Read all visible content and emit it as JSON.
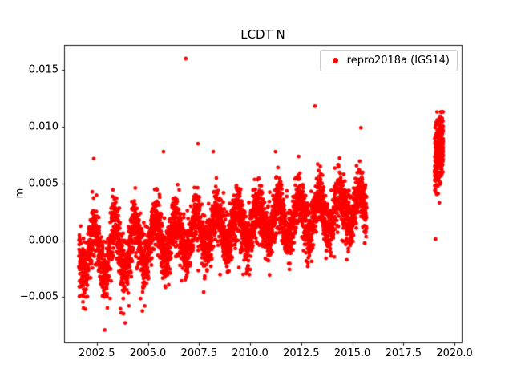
{
  "chart_data": {
    "type": "scatter",
    "title": "LCDT N",
    "xlabel": "",
    "ylabel": "m",
    "legend_label": "repro2018a (IGS14)",
    "legend_position": "upper right",
    "grid": false,
    "series_color": "#ff0000",
    "marker_radius_px": 2.4,
    "xlim": [
      2000.9,
      2020.35
    ],
    "ylim": [
      -0.009,
      0.0172
    ],
    "xtick_values": [
      2002.5,
      2005.0,
      2007.5,
      2010.0,
      2012.5,
      2015.0,
      2017.5,
      2020.0
    ],
    "xtick_labels": [
      "2002.5",
      "2005.0",
      "2007.5",
      "2010.0",
      "2012.5",
      "2015.0",
      "2017.5",
      "2020.0"
    ],
    "ytick_values": [
      -0.005,
      0.0,
      0.005,
      0.01,
      0.015
    ],
    "ytick_labels": [
      "−0.005",
      "0.000",
      "0.005",
      "0.010",
      "0.015"
    ],
    "seed": 20180214,
    "main_series": {
      "description": "dense daily N-component time series, units m, slowly rising with annual oscillation",
      "t_start": 2001.62,
      "t_end": 2015.7,
      "step": 0.00274,
      "skip_prob": 0.18,
      "base0": -0.001,
      "slope_per_year": 0.00028,
      "season_amp": 0.00155,
      "season_amp_early_extra": 0.0009,
      "season_early_center": 2003.3,
      "season_early_width": 1.1,
      "season_phase": 0.12,
      "noise_sigma": 0.00115,
      "early_dip_end": 2004.9,
      "early_dip_prob": 0.18,
      "early_dip_mag": 0.0024,
      "heavy_tail_prob": 0.02,
      "heavy_tail_scale": 2.3,
      "clip_min": -0.0079,
      "clip_max": 0.0078
    },
    "cluster_series": {
      "description": "isolated dense cluster of points in 2019 between ~0.003 m and ~0.011 m",
      "t_start": 2019.03,
      "t_end": 2019.45,
      "step": 0.0016,
      "base0": 0.0066,
      "slope_per_year": 0.005,
      "noise_sigma": 0.0017,
      "clip_min": 0.0033,
      "clip_max": 0.0113
    },
    "outlier_points": [
      [
        2006.85,
        0.016
      ],
      [
        2007.45,
        0.0085
      ],
      [
        2013.17,
        0.0118
      ],
      [
        2015.42,
        0.0099
      ],
      [
        2019.07,
        0.0001
      ]
    ]
  }
}
